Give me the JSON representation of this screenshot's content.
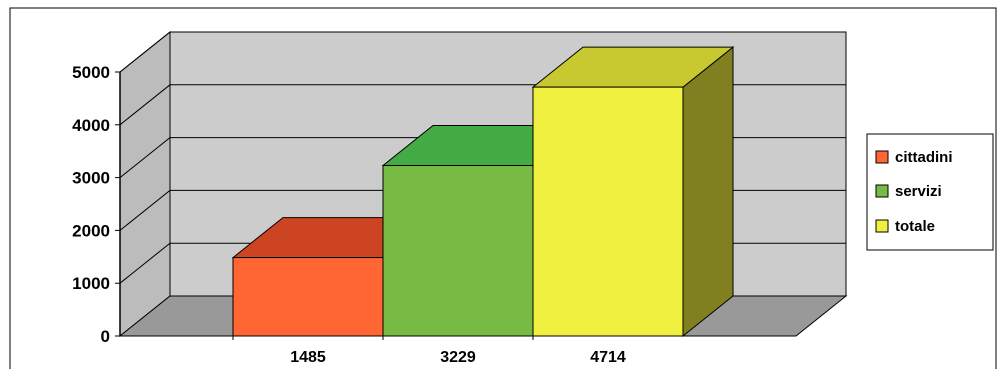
{
  "chart_data": {
    "type": "bar",
    "style": "3d-column",
    "categories": [
      "1485",
      "3229",
      "4714"
    ],
    "values": [
      1485,
      3229,
      4714
    ],
    "series": [
      {
        "name": "cittadini",
        "values": [
          1485,
          null,
          null
        ],
        "color": "#ff6633",
        "top_color": "#cc4422"
      },
      {
        "name": "servizi",
        "values": [
          null,
          3229,
          null
        ],
        "color": "#77bb44",
        "top_color": "#44aa44"
      },
      {
        "name": "totale",
        "values": [
          null,
          null,
          4714
        ],
        "color": "#f0f040",
        "top_color": "#c8c830",
        "side_color": "#808020"
      }
    ],
    "title": "",
    "xlabel": "",
    "ylabel": "",
    "ylim": [
      0,
      5000
    ],
    "yticks": [
      "0",
      "1000",
      "2000",
      "3000",
      "4000",
      "5000"
    ],
    "grid": true,
    "legend_position": "right",
    "wall_color": "#cccccc",
    "floor_color": "#999999"
  }
}
